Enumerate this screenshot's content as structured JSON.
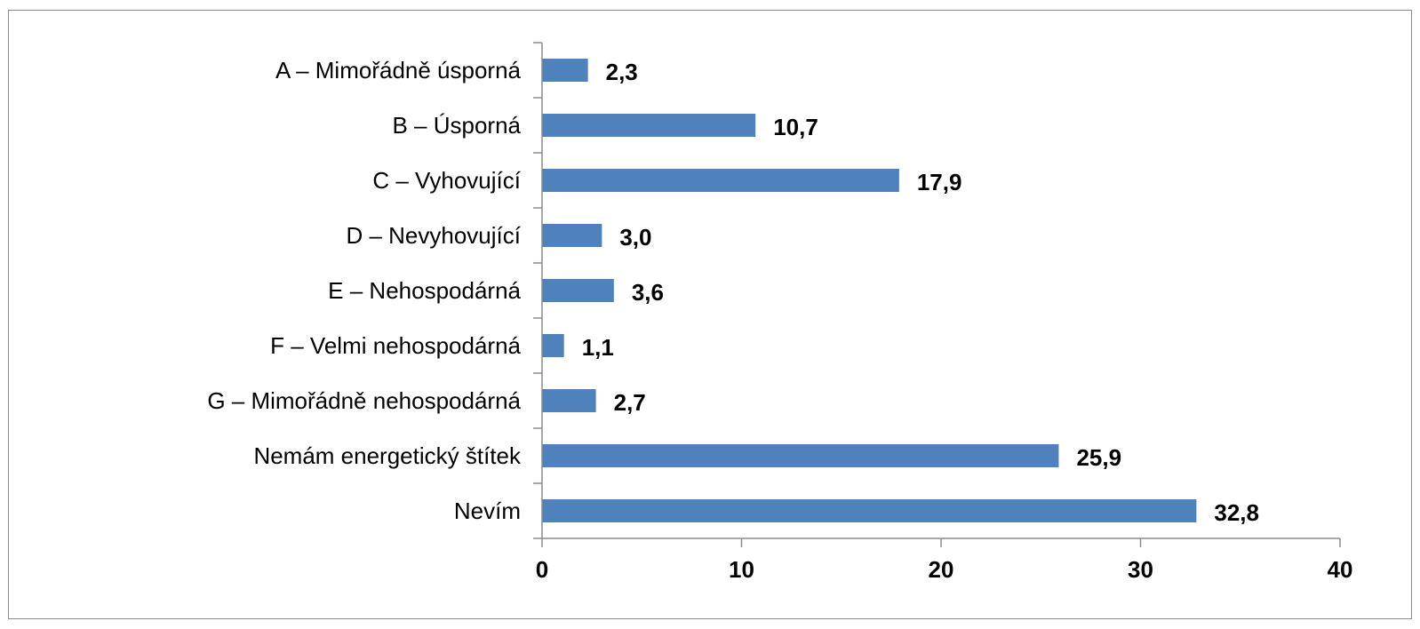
{
  "chart_data": {
    "type": "bar",
    "orientation": "horizontal",
    "title": "",
    "xlabel": "",
    "ylabel": "",
    "categories": [
      "A – Mimořádně úsporná",
      "B – Úsporná",
      "C – Vyhovující",
      "D – Nevyhovující",
      "E – Nehospodárná",
      "F – Velmi nehospodárná",
      "G – Mimořádně nehospodárná",
      "Nemám energetický štítek",
      "Nevím"
    ],
    "values": [
      2.3,
      10.7,
      17.9,
      3.0,
      3.6,
      1.1,
      2.7,
      25.9,
      32.8
    ],
    "value_labels": [
      "2,3",
      "10,7",
      "17,9",
      "3,0",
      "3,6",
      "1,1",
      "2,7",
      "25,9",
      "32,8"
    ],
    "xlim": [
      0,
      40
    ],
    "xticks": [
      0,
      10,
      20,
      30,
      40
    ],
    "xtick_labels": [
      "0",
      "10",
      "20",
      "30",
      "40"
    ],
    "bar_color": "#4f81bd",
    "grid": false,
    "legend": "none"
  }
}
